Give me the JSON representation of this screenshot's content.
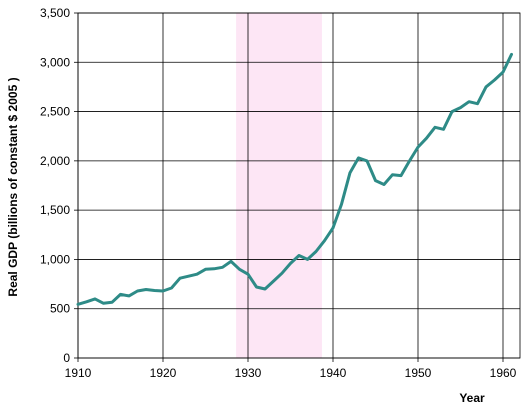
{
  "chart_data": {
    "type": "line",
    "xlabel": "Year",
    "ylabel": "Real GDP (billions of constant $ 2005 )",
    "xlim": [
      1910,
      1962
    ],
    "ylim": [
      0,
      3500
    ],
    "xticks": [
      1910,
      1920,
      1930,
      1940,
      1950,
      1960
    ],
    "yticks": [
      0,
      500,
      1000,
      1500,
      2000,
      2500,
      3000,
      3500
    ],
    "ytick_labels": [
      "0",
      "500",
      "1,000",
      "1,500",
      "2,000",
      "2,500",
      "3,000",
      "3,500"
    ],
    "grid": true,
    "legend": "none",
    "shaded_region": {
      "x_start": 1928.6,
      "x_end": 1938.7,
      "color": "#fde6f5"
    },
    "series": [
      {
        "color": "#2e8b87",
        "x": [
          1910,
          1911,
          1912,
          1913,
          1914,
          1915,
          1916,
          1917,
          1918,
          1919,
          1920,
          1921,
          1922,
          1923,
          1924,
          1925,
          1926,
          1927,
          1928,
          1929,
          1930,
          1931,
          1932,
          1933,
          1934,
          1935,
          1936,
          1937,
          1938,
          1939,
          1940,
          1941,
          1942,
          1943,
          1944,
          1945,
          1946,
          1947,
          1948,
          1949,
          1950,
          1951,
          1952,
          1953,
          1954,
          1955,
          1956,
          1957,
          1958,
          1959,
          1960,
          1961
        ],
        "y": [
          545,
          570,
          600,
          555,
          565,
          645,
          630,
          680,
          695,
          685,
          680,
          710,
          810,
          830,
          850,
          900,
          905,
          920,
          980,
          900,
          850,
          720,
          700,
          780,
          860,
          960,
          1040,
          1000,
          1080,
          1190,
          1320,
          1560,
          1880,
          2030,
          2000,
          1800,
          1760,
          1860,
          1850,
          2000,
          2140,
          2230,
          2340,
          2320,
          2500,
          2540,
          2600,
          2580,
          2750,
          2820,
          2900,
          3080
        ]
      }
    ]
  }
}
